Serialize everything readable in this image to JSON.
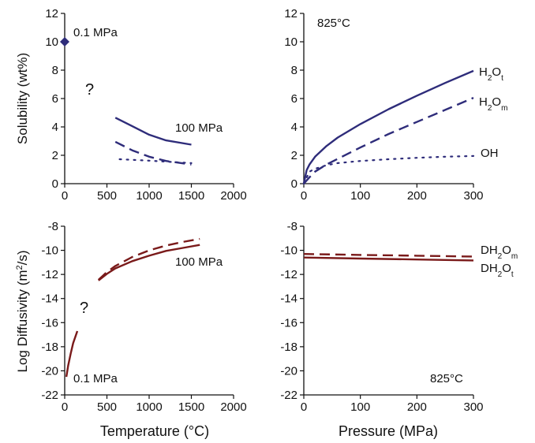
{
  "colors": {
    "blue": "#2e2c7a",
    "red": "#7a1a1a",
    "axis": "#111111"
  },
  "axis_labels": {
    "solubility": "Solubility (wt%)",
    "diffusivity_html": "Log Diffusivity (m<tspan baseline-shift=\"super\" font-size=\"11\">2</tspan>/s)",
    "temperature": "Temperature (°C)",
    "pressure": "Pressure (MPa)"
  },
  "chart_data": [
    {
      "type": "line",
      "panel": "solubility-vs-temperature",
      "xlim": [
        0,
        2000
      ],
      "ylim": [
        0,
        12
      ],
      "xticks": [
        0,
        500,
        1000,
        1500,
        2000
      ],
      "yticks": [
        0,
        2,
        4,
        6,
        8,
        10,
        12
      ],
      "ylabel": "Solubility (wt%)",
      "annotations": [
        "0.1 MPa",
        "100 MPa",
        "?"
      ],
      "series": [
        {
          "style": "solid",
          "color": "blue",
          "x": [
            600,
            800,
            1000,
            1200,
            1500
          ],
          "y": [
            4.65,
            4.05,
            3.45,
            3.05,
            2.75
          ]
        },
        {
          "style": "dashed",
          "color": "blue",
          "x": [
            600,
            800,
            1000,
            1200,
            1500
          ],
          "y": [
            2.95,
            2.35,
            1.9,
            1.6,
            1.35
          ]
        },
        {
          "style": "dotted",
          "color": "blue",
          "x": [
            650,
            1000,
            1500
          ],
          "y": [
            1.72,
            1.62,
            1.45
          ]
        },
        {
          "style": "marker",
          "color": "blue",
          "x": [
            0
          ],
          "y": [
            10
          ]
        }
      ]
    },
    {
      "type": "line",
      "panel": "solubility-vs-pressure",
      "xlim": [
        0,
        300
      ],
      "ylim": [
        0,
        12
      ],
      "xticks": [
        0,
        100,
        200,
        300
      ],
      "yticks": [
        0,
        2,
        4,
        6,
        8,
        10,
        12
      ],
      "annotations": [
        "825°C"
      ],
      "series": [
        {
          "name": "H2Ot",
          "label_html": "H<tspan baseline-shift=\"sub\" font-size=\"10\">2</tspan>O<tspan baseline-shift=\"sub\" font-size=\"10\">t</tspan>",
          "style": "solid",
          "color": "blue",
          "x": [
            0,
            5,
            10,
            20,
            40,
            60,
            100,
            150,
            200,
            250,
            300
          ],
          "y": [
            0,
            0.95,
            1.35,
            1.9,
            2.65,
            3.25,
            4.2,
            5.25,
            6.2,
            7.1,
            7.95
          ]
        },
        {
          "name": "H2Om",
          "label_html": "H<tspan baseline-shift=\"sub\" font-size=\"10\">2</tspan>O<tspan baseline-shift=\"sub\" font-size=\"10\">m</tspan>",
          "style": "dashed",
          "color": "blue",
          "x": [
            0,
            10,
            20,
            40,
            60,
            100,
            150,
            200,
            250,
            300
          ],
          "y": [
            0,
            0.45,
            0.85,
            1.35,
            1.75,
            2.55,
            3.5,
            4.35,
            5.2,
            6.05
          ]
        },
        {
          "name": "OH",
          "label_html": "OH",
          "style": "dotted",
          "color": "blue",
          "x": [
            0,
            10,
            20,
            40,
            60,
            100,
            150,
            200,
            250,
            300
          ],
          "y": [
            0,
            0.85,
            1.05,
            1.3,
            1.45,
            1.6,
            1.72,
            1.82,
            1.9,
            1.95
          ]
        }
      ]
    },
    {
      "type": "line",
      "panel": "diffusivity-vs-temperature",
      "xlim": [
        0,
        2000
      ],
      "ylim": [
        -22,
        -8
      ],
      "xticks": [
        0,
        500,
        1000,
        1500,
        2000
      ],
      "yticks": [
        -22,
        -20,
        -18,
        -16,
        -14,
        -12,
        -10,
        -8
      ],
      "annotations": [
        "100 MPa",
        "0.1 MPa",
        "?"
      ],
      "series": [
        {
          "style": "solid",
          "color": "red",
          "x": [
            20,
            40,
            70,
            100,
            150
          ],
          "y": [
            -20.5,
            -19.6,
            -18.6,
            -17.7,
            -16.7
          ]
        },
        {
          "style": "solid",
          "color": "red",
          "x": [
            400,
            500,
            600,
            800,
            1000,
            1200,
            1400,
            1600
          ],
          "y": [
            -12.5,
            -11.95,
            -11.5,
            -10.9,
            -10.45,
            -10.05,
            -9.8,
            -9.55
          ]
        },
        {
          "style": "dashed",
          "color": "red",
          "x": [
            400,
            500,
            600,
            800,
            1000,
            1200,
            1400,
            1600
          ],
          "y": [
            -12.45,
            -11.8,
            -11.3,
            -10.55,
            -10.0,
            -9.6,
            -9.3,
            -9.05
          ]
        }
      ]
    },
    {
      "type": "line",
      "panel": "diffusivity-vs-pressure",
      "xlim": [
        0,
        300
      ],
      "ylim": [
        -22,
        -8
      ],
      "xticks": [
        0,
        100,
        200,
        300
      ],
      "yticks": [
        -22,
        -20,
        -18,
        -16,
        -14,
        -12,
        -10,
        -8
      ],
      "annotations": [
        "825°C"
      ],
      "series": [
        {
          "name": "DH2Om",
          "label_html": "DH<tspan baseline-shift=\"sub\" font-size=\"10\">2</tspan>O<tspan baseline-shift=\"sub\" font-size=\"10\">m</tspan>",
          "style": "dashed",
          "color": "red",
          "x": [
            0,
            100,
            200,
            300
          ],
          "y": [
            -10.3,
            -10.38,
            -10.45,
            -10.52
          ]
        },
        {
          "name": "DH2Ot",
          "label_html": "DH<tspan baseline-shift=\"sub\" font-size=\"10\">2</tspan>O<tspan baseline-shift=\"sub\" font-size=\"10\">t</tspan>",
          "style": "solid",
          "color": "red",
          "x": [
            0,
            100,
            200,
            300
          ],
          "y": [
            -10.6,
            -10.68,
            -10.76,
            -10.84
          ]
        }
      ]
    }
  ]
}
